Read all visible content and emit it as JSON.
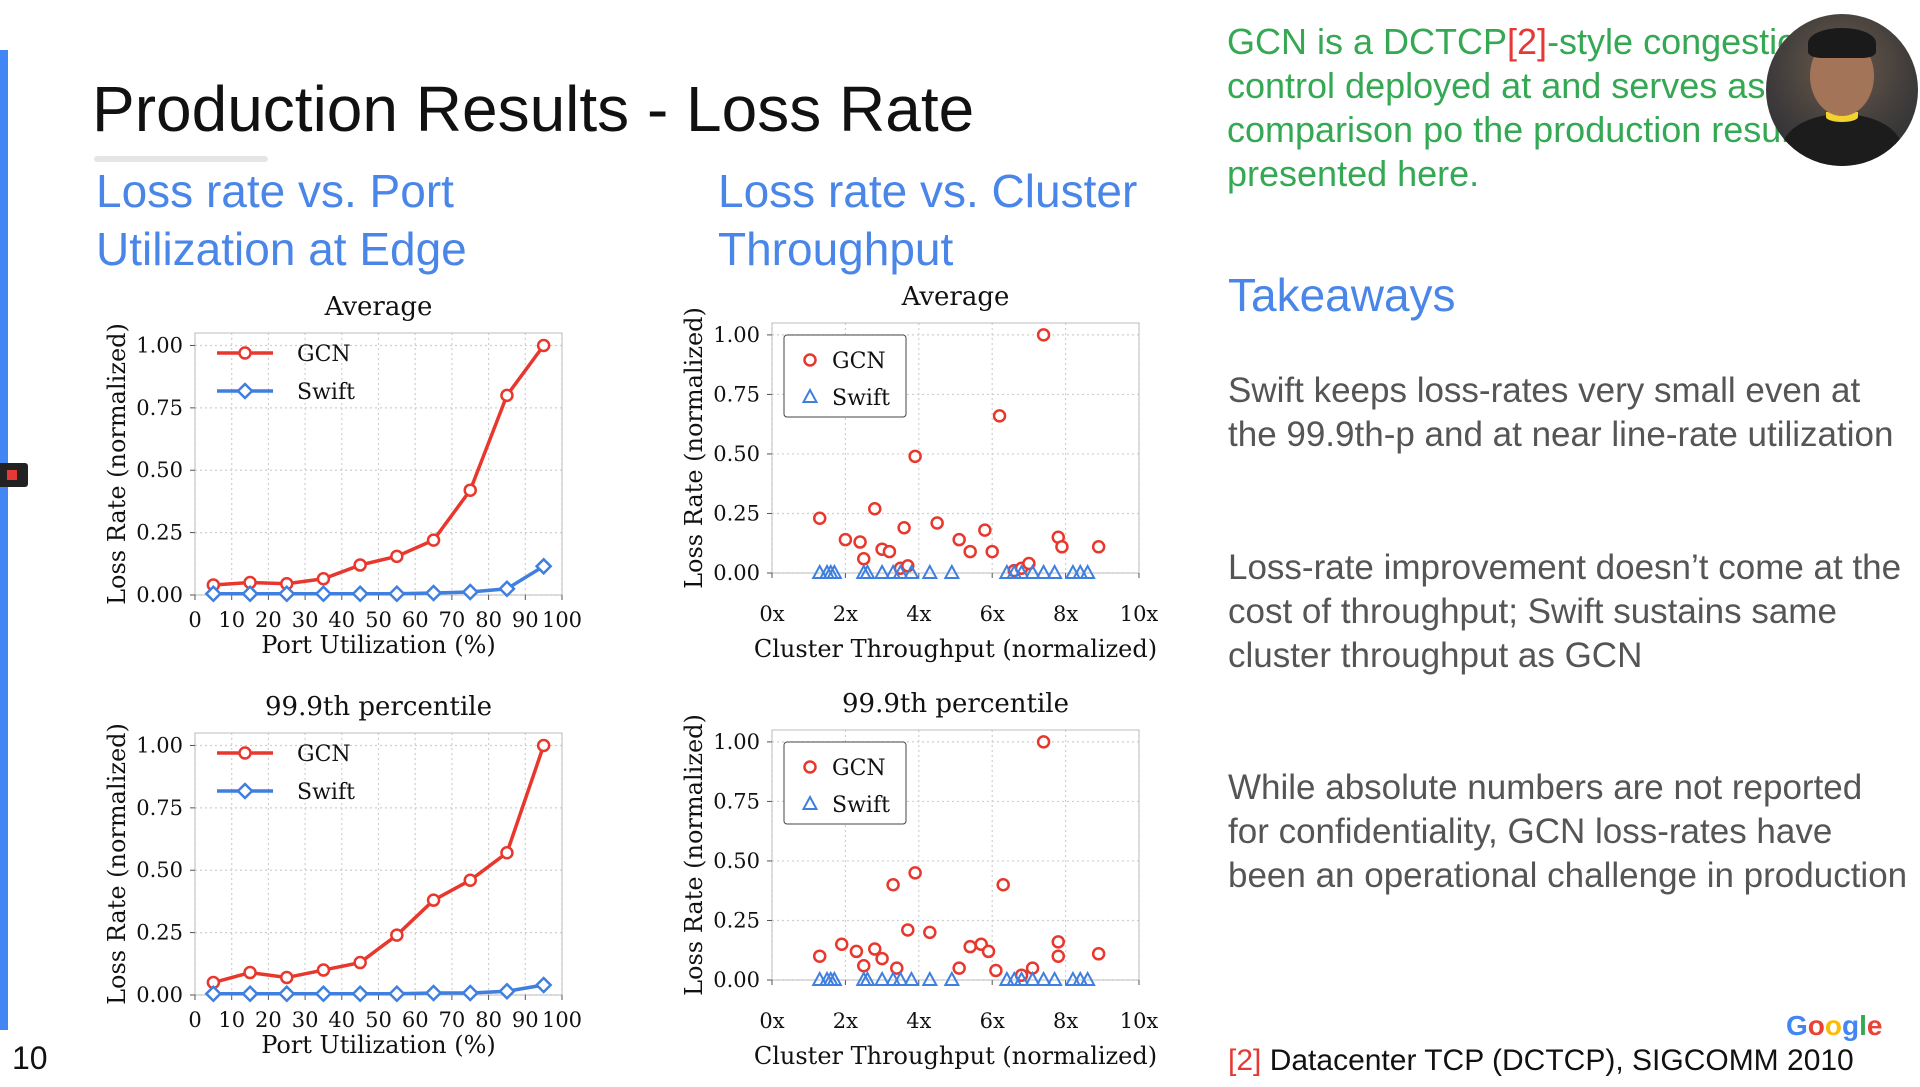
{
  "slide": {
    "title": "Production Results - Loss Rate",
    "number": "10",
    "left_heading": [
      "Loss rate vs. Port",
      "Utilization at Edge"
    ],
    "right_heading": [
      "Loss rate vs. Cluster",
      "Throughput"
    ],
    "intro": {
      "before": "GCN is a DCTCP",
      "ref": "[2]",
      "after": "-style congestion-control deployed at and serves as the comparison po the production results presented here."
    },
    "takeaways_title": "Takeaways",
    "takeaways": [
      "Swift keeps loss-rates very small even at the 99.9th-p and at near line-rate utilization",
      "Loss-rate improvement doesn’t come at the cost of throughput; Swift sustains same cluster throughput as GCN",
      "While absolute numbers are not reported for confidentiality, GCN loss-rates have been an operational challenge in production"
    ],
    "footnote": {
      "ref": "[2]",
      "text": " Datacenter TCP (DCTCP), SIGCOMM 2010"
    },
    "logo_text": "Google",
    "colors": {
      "gcn": "#e8372c",
      "swift": "#3f7fe0",
      "heading": "#4a86e8",
      "intro": "#34a853"
    }
  },
  "chart_data": [
    {
      "type": "line",
      "title": "Average",
      "xlabel": "Port Utilization (%)",
      "ylabel": "Loss Rate (normalized)",
      "xlim": [
        0,
        100
      ],
      "ylim": [
        0,
        1.05
      ],
      "x_ticks": [
        0,
        10,
        20,
        30,
        40,
        50,
        60,
        70,
        80,
        90,
        100
      ],
      "x_tick_labels": [
        "0",
        "10",
        "20",
        "30",
        "40",
        "50",
        "60",
        "70",
        "80",
        "90",
        "100"
      ],
      "y_ticks": [
        0,
        0.25,
        0.5,
        0.75,
        1.0
      ],
      "y_tick_labels": [
        "0.00",
        "0.25",
        "0.50",
        "0.75",
        "1.00"
      ],
      "legend_position": "top-left",
      "grid": true,
      "series": [
        {
          "name": "GCN",
          "marker": "circle",
          "x": [
            5,
            15,
            25,
            35,
            45,
            55,
            65,
            75,
            85,
            95
          ],
          "y": [
            0.04,
            0.05,
            0.045,
            0.065,
            0.12,
            0.155,
            0.22,
            0.42,
            0.8,
            1.0
          ]
        },
        {
          "name": "Swift",
          "marker": "diamond",
          "x": [
            5,
            15,
            25,
            35,
            45,
            55,
            65,
            75,
            85,
            95
          ],
          "y": [
            0.005,
            0.005,
            0.005,
            0.005,
            0.005,
            0.005,
            0.008,
            0.012,
            0.025,
            0.115
          ]
        }
      ]
    },
    {
      "type": "line",
      "title": "99.9th percentile",
      "xlabel": "Port Utilization (%)",
      "ylabel": "Loss Rate (normalized)",
      "xlim": [
        0,
        100
      ],
      "ylim": [
        0,
        1.05
      ],
      "x_ticks": [
        0,
        10,
        20,
        30,
        40,
        50,
        60,
        70,
        80,
        90,
        100
      ],
      "x_tick_labels": [
        "0",
        "10",
        "20",
        "30",
        "40",
        "50",
        "60",
        "70",
        "80",
        "90",
        "100"
      ],
      "y_ticks": [
        0,
        0.25,
        0.5,
        0.75,
        1.0
      ],
      "y_tick_labels": [
        "0.00",
        "0.25",
        "0.50",
        "0.75",
        "1.00"
      ],
      "legend_position": "top-left",
      "grid": true,
      "series": [
        {
          "name": "GCN",
          "marker": "circle",
          "x": [
            5,
            15,
            25,
            35,
            45,
            55,
            65,
            75,
            85,
            95
          ],
          "y": [
            0.05,
            0.09,
            0.07,
            0.1,
            0.13,
            0.24,
            0.38,
            0.46,
            0.57,
            1.0
          ]
        },
        {
          "name": "Swift",
          "marker": "diamond",
          "x": [
            5,
            15,
            25,
            35,
            45,
            55,
            65,
            75,
            85,
            95
          ],
          "y": [
            0.005,
            0.005,
            0.005,
            0.005,
            0.005,
            0.005,
            0.008,
            0.008,
            0.015,
            0.04
          ]
        }
      ]
    },
    {
      "type": "scatter",
      "title": "Average",
      "xlabel": "Cluster Throughput (normalized)",
      "ylabel": "Loss Rate (normalized)",
      "xlim": [
        0,
        10
      ],
      "ylim": [
        0,
        1.05
      ],
      "x_ticks": [
        0,
        2,
        4,
        6,
        8,
        10
      ],
      "x_tick_labels": [
        "0x",
        "2x",
        "4x",
        "6x",
        "8x",
        "10x"
      ],
      "y_ticks": [
        0,
        0.25,
        0.5,
        0.75,
        1.0
      ],
      "y_tick_labels": [
        "0.00",
        "0.25",
        "0.50",
        "0.75",
        "1.00"
      ],
      "legend_position": "top-left",
      "grid": true,
      "series": [
        {
          "name": "GCN",
          "marker": "circle",
          "x": [
            1.3,
            2.0,
            2.4,
            2.5,
            2.8,
            3.0,
            3.2,
            3.5,
            3.6,
            3.7,
            3.9,
            4.5,
            5.1,
            5.4,
            5.8,
            6.0,
            6.2,
            6.6,
            6.8,
            7.0,
            7.4,
            7.8,
            7.9,
            8.9
          ],
          "y": [
            0.23,
            0.14,
            0.13,
            0.06,
            0.27,
            0.1,
            0.09,
            0.02,
            0.19,
            0.03,
            0.49,
            0.21,
            0.14,
            0.09,
            0.18,
            0.09,
            0.66,
            0.01,
            0.02,
            0.04,
            1.0,
            0.15,
            0.11,
            0.11
          ]
        },
        {
          "name": "Swift",
          "marker": "triangle",
          "x": [
            1.3,
            1.5,
            1.6,
            1.7,
            2.5,
            2.6,
            3.0,
            3.3,
            3.5,
            3.8,
            4.3,
            4.9,
            6.4,
            6.6,
            6.8,
            7.1,
            7.4,
            7.7,
            8.2,
            8.4,
            8.6
          ],
          "y": [
            0,
            0,
            0,
            0,
            0,
            0,
            0,
            0,
            0,
            0,
            0,
            0,
            0,
            0,
            0,
            0,
            0,
            0,
            0,
            0,
            0
          ]
        }
      ]
    },
    {
      "type": "scatter",
      "title": "99.9th percentile",
      "xlabel": "Cluster Throughput (normalized)",
      "ylabel": "Loss Rate (normalized)",
      "xlim": [
        0,
        10
      ],
      "ylim": [
        0,
        1.05
      ],
      "x_ticks": [
        0,
        2,
        4,
        6,
        8,
        10
      ],
      "x_tick_labels": [
        "0x",
        "2x",
        "4x",
        "6x",
        "8x",
        "10x"
      ],
      "y_ticks": [
        0,
        0.25,
        0.5,
        0.75,
        1.0
      ],
      "y_tick_labels": [
        "0.00",
        "0.25",
        "0.50",
        "0.75",
        "1.00"
      ],
      "legend_position": "top-left",
      "grid": true,
      "series": [
        {
          "name": "GCN",
          "marker": "circle",
          "x": [
            1.3,
            1.9,
            2.3,
            2.5,
            2.8,
            3.0,
            3.3,
            3.4,
            3.7,
            3.9,
            4.3,
            5.1,
            5.4,
            5.7,
            5.9,
            6.1,
            6.3,
            6.8,
            7.1,
            7.4,
            7.8,
            7.8,
            8.9
          ],
          "y": [
            0.1,
            0.15,
            0.12,
            0.06,
            0.13,
            0.09,
            0.4,
            0.05,
            0.21,
            0.45,
            0.2,
            0.05,
            0.14,
            0.15,
            0.12,
            0.04,
            0.4,
            0.02,
            0.05,
            1.0,
            0.16,
            0.1,
            0.11
          ]
        },
        {
          "name": "Swift",
          "marker": "triangle",
          "x": [
            1.3,
            1.5,
            1.6,
            1.7,
            2.5,
            2.6,
            3.0,
            3.3,
            3.5,
            3.8,
            4.3,
            4.9,
            6.4,
            6.6,
            6.8,
            7.1,
            7.4,
            7.7,
            8.2,
            8.4,
            8.6
          ],
          "y": [
            0,
            0,
            0,
            0,
            0,
            0,
            0,
            0,
            0,
            0,
            0,
            0,
            0,
            0,
            0,
            0,
            0,
            0,
            0,
            0,
            0
          ]
        }
      ]
    }
  ]
}
